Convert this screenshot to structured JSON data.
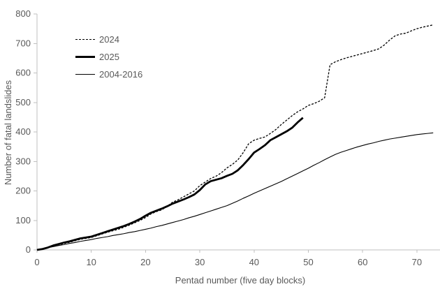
{
  "page": {
    "background": "#ffffff"
  },
  "chart_data": {
    "type": "line",
    "title": "",
    "xlabel": "Pentad number (five day blocks)",
    "ylabel": "Number of fatal landslides",
    "xlim": [
      0,
      74
    ],
    "ylim": [
      0,
      800
    ],
    "x_ticks": [
      0,
      10,
      20,
      30,
      40,
      50,
      60,
      70
    ],
    "y_ticks": [
      0,
      100,
      200,
      300,
      400,
      500,
      600,
      700,
      800
    ],
    "grid": false,
    "legend_position": "top-left-inside",
    "axis_color": "#BFBFBF",
    "text_color": "#595959",
    "line_color": "#000000",
    "x_unit": "pentad (index = pentad number, step 1)",
    "series": [
      {
        "name": "2024",
        "style": "dashed",
        "stroke_width": 1.3,
        "color": "#000000",
        "values": [
          0,
          3,
          7,
          12,
          17,
          22,
          26,
          31,
          36,
          39,
          42,
          48,
          54,
          60,
          65,
          70,
          77,
          84,
          92,
          100,
          110,
          122,
          130,
          136,
          148,
          162,
          170,
          180,
          190,
          200,
          218,
          230,
          242,
          250,
          262,
          278,
          290,
          305,
          330,
          360,
          372,
          378,
          383,
          395,
          408,
          425,
          440,
          455,
          468,
          478,
          490,
          496,
          504,
          516,
          628,
          638,
          645,
          651,
          656,
          661,
          666,
          671,
          676,
          682,
          695,
          712,
          726,
          732,
          735,
          743,
          750,
          755,
          759,
          763
        ]
      },
      {
        "name": "2025",
        "style": "solid",
        "stroke_width": 2.8,
        "color": "#000000",
        "values": [
          0,
          3,
          8,
          15,
          20,
          25,
          29,
          34,
          39,
          42,
          45,
          51,
          57,
          63,
          69,
          75,
          81,
          88,
          96,
          105,
          116,
          126,
          133,
          140,
          148,
          157,
          164,
          171,
          179,
          188,
          203,
          222,
          233,
          238,
          243,
          251,
          258,
          270,
          288,
          308,
          330,
          342,
          355,
          372,
          382,
          392,
          402,
          414,
          432,
          448
        ]
      },
      {
        "name": "2004-2016",
        "style": "solid",
        "stroke_width": 1.1,
        "color": "#000000",
        "values": [
          0,
          4,
          8,
          11,
          15,
          18,
          22,
          25,
          29,
          32,
          35,
          39,
          42,
          45,
          49,
          52,
          55,
          59,
          62,
          66,
          70,
          74,
          79,
          83,
          88,
          93,
          98,
          103,
          109,
          114,
          120,
          126,
          132,
          138,
          144,
          150,
          158,
          166,
          175,
          183,
          192,
          200,
          208,
          216,
          224,
          232,
          241,
          250,
          259,
          268,
          277,
          287,
          296,
          306,
          315,
          324,
          331,
          337,
          343,
          349,
          354,
          359,
          363,
          368,
          372,
          376,
          379,
          382,
          385,
          388,
          391,
          393,
          395,
          397
        ]
      }
    ]
  }
}
